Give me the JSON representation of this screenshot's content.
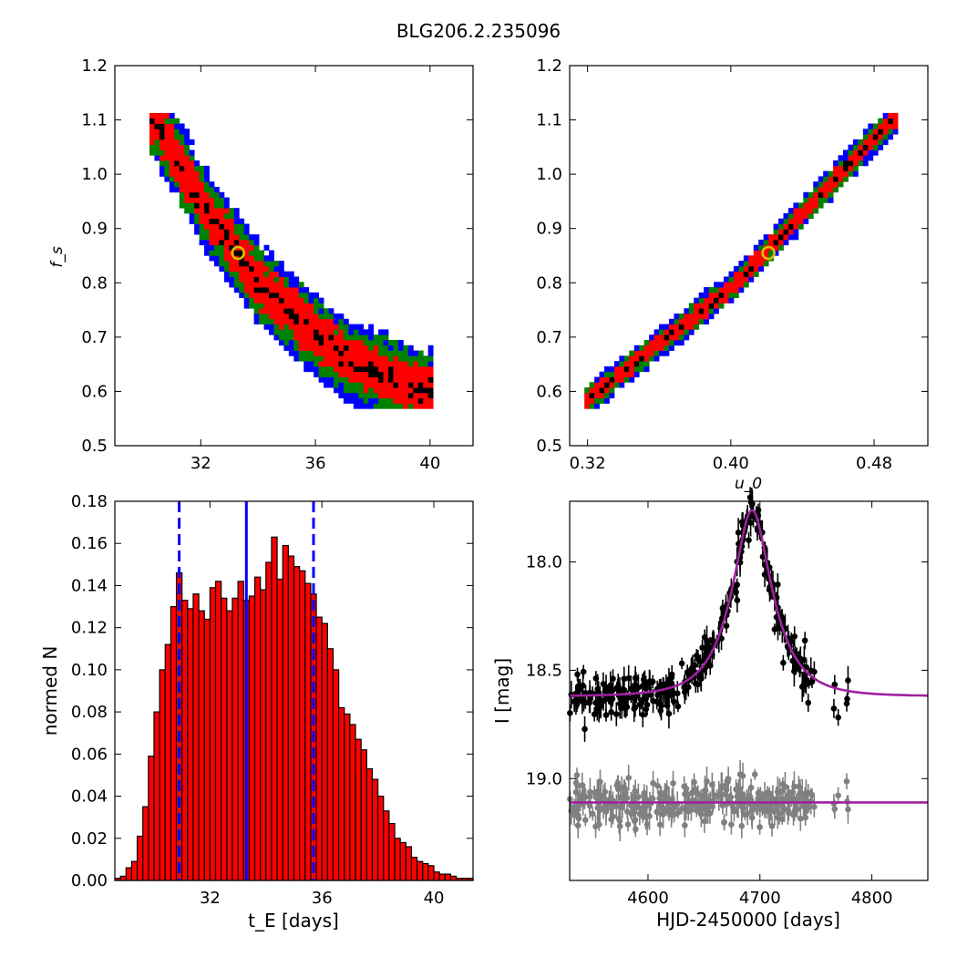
{
  "figure": {
    "title": "BLG206.2.235096"
  },
  "chart_data": [
    {
      "type": "heatmap",
      "panel": "top-left",
      "xlabel": "",
      "ylabel": "f_s",
      "xlim": [
        29,
        41.5
      ],
      "ylim": [
        0.5,
        1.2
      ],
      "xticks": [
        32,
        36,
        40
      ],
      "yticks": [
        0.5,
        0.6,
        0.7,
        0.8,
        0.9,
        1.0,
        1.1,
        1.2
      ],
      "xtick_labels": [
        "32",
        "36",
        "40"
      ],
      "ytick_labels": [
        "0.5",
        "0.6",
        "0.7",
        "0.8",
        "0.9",
        "1.0",
        "1.1",
        "1.2"
      ],
      "colors": {
        "outer": "#0000ff",
        "middle": "#008000",
        "inner": "#ff0000",
        "core": "#000000",
        "marker": "#d4c100"
      },
      "band_centerline": [
        [
          30.4,
          1.1
        ],
        [
          32.0,
          0.95
        ],
        [
          34.0,
          0.8
        ],
        [
          37.0,
          0.66
        ],
        [
          39.8,
          0.6
        ]
      ],
      "band_half_widths": {
        "outer": 0.075,
        "middle": 0.06,
        "inner": 0.04,
        "core": 0.012
      },
      "best_fit": {
        "x": 33.3,
        "y": 0.855
      }
    },
    {
      "type": "heatmap",
      "panel": "top-right",
      "xlabel": "u_0",
      "ylabel": "",
      "xlim": [
        0.31,
        0.51
      ],
      "ylim": [
        0.5,
        1.2
      ],
      "xticks": [
        0.32,
        0.4,
        0.48
      ],
      "yticks": [
        0.5,
        0.6,
        0.7,
        0.8,
        0.9,
        1.0,
        1.1,
        1.2
      ],
      "xtick_labels": [
        "0.32",
        "0.40",
        "0.48"
      ],
      "ytick_labels": [
        "0.5",
        "0.6",
        "0.7",
        "0.8",
        "0.9",
        "1.0",
        "1.1",
        "1.2"
      ],
      "colors": {
        "outer": "#0000ff",
        "middle": "#008000",
        "inner": "#ff0000",
        "core": "#000000",
        "marker": "#d4c100"
      },
      "band_centerline": [
        [
          0.32,
          0.585
        ],
        [
          0.4,
          0.79
        ],
        [
          0.49,
          1.1
        ]
      ],
      "band_half_widths": {
        "outer": 0.028,
        "middle": 0.022,
        "inner": 0.015,
        "core": 0.005
      },
      "best_fit": {
        "x": 0.421,
        "y": 0.855
      }
    },
    {
      "type": "bar",
      "panel": "bottom-left",
      "xlabel": "t_E  [days]",
      "ylabel": "normed N",
      "xlim": [
        28.6,
        41.4
      ],
      "ylim": [
        0,
        0.18
      ],
      "xticks": [
        32,
        36,
        40
      ],
      "yticks": [
        0,
        0.02,
        0.04,
        0.06,
        0.08,
        0.1,
        0.12,
        0.14,
        0.16,
        0.18
      ],
      "xtick_labels": [
        "32",
        "36",
        "40"
      ],
      "ytick_labels": [
        "0.00",
        "0.02",
        "0.04",
        "0.06",
        "0.08",
        "0.10",
        "0.12",
        "0.14",
        "0.16",
        "0.18"
      ],
      "bin_start": 28.6,
      "bin_width": 0.2,
      "values": [
        0.001,
        0.002,
        0.006,
        0.009,
        0.021,
        0.035,
        0.059,
        0.08,
        0.1,
        0.112,
        0.13,
        0.146,
        0.133,
        0.129,
        0.136,
        0.128,
        0.124,
        0.139,
        0.142,
        0.134,
        0.128,
        0.134,
        0.142,
        0.133,
        0.135,
        0.144,
        0.138,
        0.151,
        0.163,
        0.143,
        0.159,
        0.154,
        0.149,
        0.147,
        0.141,
        0.136,
        0.125,
        0.122,
        0.11,
        0.1,
        0.082,
        0.079,
        0.074,
        0.067,
        0.062,
        0.053,
        0.048,
        0.04,
        0.033,
        0.027,
        0.02,
        0.018,
        0.016,
        0.011,
        0.009,
        0.008,
        0.007,
        0.004,
        0.003,
        0.003,
        0.002,
        0.001,
        0.001,
        0.001
      ],
      "median": 33.3,
      "lower_bound": 30.9,
      "upper_bound": 35.7,
      "colors": {
        "bar": "#ff0000",
        "line": "#0000ff"
      }
    },
    {
      "type": "scatter",
      "panel": "bottom-right",
      "xlabel": "HJD-2450000 [days]",
      "ylabel": "I [mag]",
      "xlim": [
        4530,
        4850
      ],
      "ylim": [
        19.47,
        17.72
      ],
      "xticks": [
        4600,
        4700,
        4800
      ],
      "yticks": [
        18.0,
        18.5,
        19.0
      ],
      "xtick_labels": [
        "4600",
        "4700",
        "4800"
      ],
      "ytick_labels": [
        "18.0",
        "18.5",
        "19.0"
      ],
      "model": {
        "t0": 4693,
        "tE": 33.3,
        "u0": 0.42,
        "baseline": 18.62,
        "peak": 17.76
      },
      "residual_offset": 19.11,
      "obs_range": [
        4530,
        4780
      ],
      "colors": {
        "data": "#000000",
        "residuals": "#808080",
        "model": "#a020a0"
      }
    }
  ]
}
